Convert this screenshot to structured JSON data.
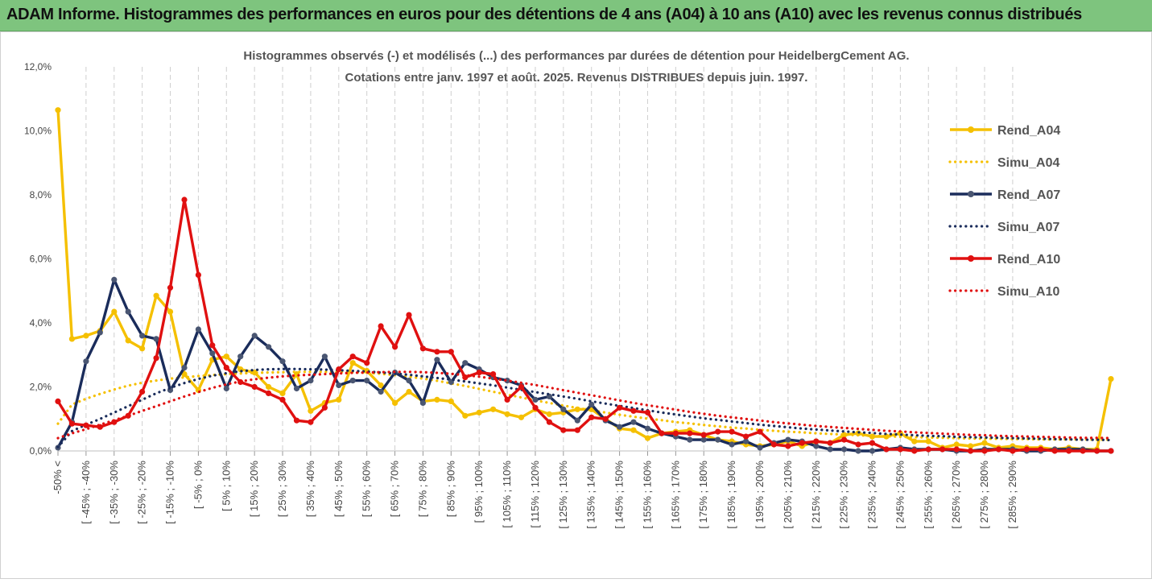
{
  "banner": {
    "title": "ADAM Informe. Histogrammes des performances en euros pour des détentions de 4 ans (A04) à 10 ans (A10) avec les revenus connus distribués",
    "color": "#7ec47e"
  },
  "chart_data": {
    "type": "line",
    "title_line1": "Histogrammes observés (-) et modélisés (...) des performances par durées de détention pour HeidelbergCement AG.",
    "title_line2": "Cotations entre janv. 1997 et août. 2025. Revenus DISTRIBUES depuis juin. 1997.",
    "ylim": [
      0,
      12
    ],
    "yticks": [
      "0,0%",
      "2,0%",
      "4,0%",
      "6,0%",
      "8,0%",
      "10,0%",
      "12,0%"
    ],
    "yticks_values": [
      0,
      2,
      4,
      6,
      8,
      10,
      12
    ],
    "grid": "vertical dashed",
    "legend_position": "right",
    "xtick_labels": [
      "-50% <",
      "[ -45% ; -40%",
      "[ -35% ; -30%",
      "[ -25% ; -20%",
      "[ -15% ; -10%",
      "[ -5% ; 0%",
      "[ 5% ; 10%",
      "[ 15% ; 20%",
      "[ 25% ; 30%",
      "[ 35% ; 40%",
      "[ 45% ; 50%",
      "[ 55% ; 60%",
      "[ 65% ; 70%",
      "[ 75% ; 80%",
      "[ 85% ; 90%",
      "[ 95% ; 100%",
      "[ 105% ; 110%",
      "[ 115% ; 120%",
      "[ 125% ; 130%",
      "[ 135% ; 140%",
      "[ 145% ; 150%",
      "[ 155% ; 160%",
      "[ 165% ; 170%",
      "[ 175% ; 180%",
      "[ 185% ; 190%",
      "[ 195% ; 200%",
      "[ 205% ; 210%",
      "[ 215% ; 220%",
      "[ 225% ; 230%",
      "[ 235% ; 240%",
      "[ 245% ; 250%",
      "[ 255% ; 260%",
      "[ 265% ; 270%",
      "[ 275% ; 280%",
      "[ 285% ; 290%"
    ],
    "series": [
      {
        "name": "Rend_A04",
        "color": "#f5c000",
        "dashed": false,
        "values": [
          10.65,
          3.5,
          3.6,
          3.75,
          4.35,
          3.45,
          3.2,
          4.85,
          4.35,
          2.4,
          1.9,
          2.85,
          2.95,
          2.55,
          2.45,
          2.0,
          1.8,
          2.4,
          1.25,
          1.5,
          1.6,
          2.75,
          2.5,
          2.05,
          1.5,
          1.85,
          1.55,
          1.6,
          1.55,
          1.1,
          1.2,
          1.3,
          1.15,
          1.05,
          1.3,
          1.15,
          1.2,
          1.3,
          1.3,
          1.0,
          0.7,
          0.65,
          0.4,
          0.55,
          0.6,
          0.65,
          0.5,
          0.35,
          0.3,
          0.2,
          0.15,
          0.2,
          0.3,
          0.15,
          0.3,
          0.25,
          0.5,
          0.55,
          0.45,
          0.45,
          0.55,
          0.3,
          0.3,
          0.1,
          0.2,
          0.15,
          0.25,
          0.1,
          0.15,
          0.1,
          0.1,
          0.05,
          0.1,
          0.05,
          0.05,
          2.25
        ]
      },
      {
        "name": "Simu_A04",
        "color": "#f5c000",
        "dashed": true,
        "values": [
          0.85,
          1.45,
          1.63,
          1.78,
          1.92,
          2.04,
          2.13,
          2.2,
          2.26,
          2.3,
          2.34,
          2.37,
          2.4,
          2.42,
          2.44,
          2.45,
          2.46,
          2.47,
          2.47,
          2.47,
          2.47,
          2.46,
          2.44,
          2.41,
          2.37,
          2.32,
          2.26,
          2.19,
          2.11,
          2.03,
          1.94,
          1.85,
          1.76,
          1.67,
          1.58,
          1.5,
          1.42,
          1.34,
          1.27,
          1.2,
          1.13,
          1.07,
          1.01,
          0.96,
          0.9,
          0.86,
          0.81,
          0.77,
          0.73,
          0.7,
          0.66,
          0.63,
          0.6,
          0.58,
          0.55,
          0.53,
          0.51,
          0.49,
          0.47,
          0.46,
          0.44,
          0.43,
          0.42,
          0.41,
          0.4,
          0.39,
          0.38,
          0.38,
          0.37,
          0.37,
          0.36,
          0.36,
          0.36,
          0.36,
          0.35,
          0.35
        ]
      },
      {
        "name": "Rend_A07",
        "color": "#1a2c5b",
        "dashed": false,
        "values": [
          0.1,
          0.9,
          2.8,
          3.7,
          5.35,
          4.35,
          3.6,
          3.5,
          1.9,
          2.6,
          3.8,
          3.05,
          1.95,
          2.95,
          3.6,
          3.25,
          2.8,
          1.95,
          2.2,
          2.95,
          2.05,
          2.2,
          2.2,
          1.85,
          2.45,
          2.2,
          1.5,
          2.85,
          2.15,
          2.75,
          2.55,
          2.3,
          2.2,
          2.05,
          1.6,
          1.7,
          1.3,
          0.95,
          1.45,
          0.95,
          0.75,
          0.9,
          0.7,
          0.55,
          0.45,
          0.35,
          0.35,
          0.35,
          0.2,
          0.3,
          0.1,
          0.25,
          0.35,
          0.3,
          0.15,
          0.05,
          0.05,
          0.0,
          0.0,
          0.05,
          0.1,
          0.05,
          0.05,
          0.05,
          0.0,
          0.0,
          0.05,
          0.05,
          0.05,
          0.0,
          0.0,
          0.05,
          0.05,
          0.05,
          0.0,
          0.0
        ]
      },
      {
        "name": "Simu_A07",
        "color": "#1a2c5b",
        "dashed": true,
        "values": [
          0.12,
          0.62,
          0.82,
          1.0,
          1.2,
          1.4,
          1.6,
          1.8,
          1.97,
          2.12,
          2.25,
          2.35,
          2.43,
          2.49,
          2.53,
          2.55,
          2.56,
          2.56,
          2.55,
          2.54,
          2.52,
          2.5,
          2.48,
          2.45,
          2.42,
          2.38,
          2.33,
          2.28,
          2.23,
          2.17,
          2.11,
          2.05,
          1.98,
          1.91,
          1.84,
          1.77,
          1.7,
          1.63,
          1.55,
          1.48,
          1.41,
          1.34,
          1.27,
          1.2,
          1.14,
          1.08,
          1.02,
          0.97,
          0.92,
          0.87,
          0.82,
          0.78,
          0.74,
          0.7,
          0.67,
          0.64,
          0.61,
          0.58,
          0.56,
          0.53,
          0.51,
          0.49,
          0.47,
          0.46,
          0.44,
          0.43,
          0.42,
          0.41,
          0.4,
          0.39,
          0.38,
          0.37,
          0.36,
          0.35,
          0.35,
          0.34
        ]
      },
      {
        "name": "Rend_A10",
        "color": "#e01010",
        "dashed": false,
        "values": [
          1.55,
          0.85,
          0.8,
          0.75,
          0.9,
          1.1,
          1.85,
          2.9,
          5.1,
          7.85,
          5.5,
          3.3,
          2.6,
          2.15,
          2.0,
          1.8,
          1.6,
          0.95,
          0.9,
          1.35,
          2.55,
          2.95,
          2.75,
          3.9,
          3.25,
          4.25,
          3.2,
          3.1,
          3.1,
          2.3,
          2.45,
          2.4,
          1.6,
          2.0,
          1.35,
          0.9,
          0.65,
          0.65,
          1.05,
          1.0,
          1.35,
          1.25,
          1.2,
          0.55,
          0.55,
          0.55,
          0.5,
          0.6,
          0.6,
          0.45,
          0.6,
          0.2,
          0.15,
          0.25,
          0.3,
          0.25,
          0.35,
          0.2,
          0.25,
          0.05,
          0.05,
          0.0,
          0.05,
          0.05,
          0.05,
          0.0,
          0.0,
          0.05,
          0.0,
          0.05,
          0.05,
          0.0,
          0.0,
          0.0,
          0.0,
          0.0
        ]
      },
      {
        "name": "Simu_A10",
        "color": "#e01010",
        "dashed": true,
        "values": [
          0.4,
          0.55,
          0.68,
          0.82,
          0.96,
          1.1,
          1.25,
          1.4,
          1.55,
          1.7,
          1.84,
          1.97,
          2.08,
          2.17,
          2.24,
          2.29,
          2.33,
          2.36,
          2.38,
          2.4,
          2.42,
          2.44,
          2.45,
          2.46,
          2.47,
          2.47,
          2.46,
          2.44,
          2.41,
          2.37,
          2.32,
          2.26,
          2.2,
          2.13,
          2.06,
          1.98,
          1.9,
          1.82,
          1.74,
          1.66,
          1.58,
          1.5,
          1.43,
          1.36,
          1.29,
          1.22,
          1.16,
          1.1,
          1.05,
          1.0,
          0.95,
          0.9,
          0.86,
          0.82,
          0.78,
          0.75,
          0.72,
          0.69,
          0.66,
          0.63,
          0.61,
          0.58,
          0.56,
          0.54,
          0.52,
          0.5,
          0.49,
          0.47,
          0.46,
          0.45,
          0.44,
          0.43,
          0.42,
          0.41,
          0.41,
          0.4
        ]
      }
    ]
  }
}
